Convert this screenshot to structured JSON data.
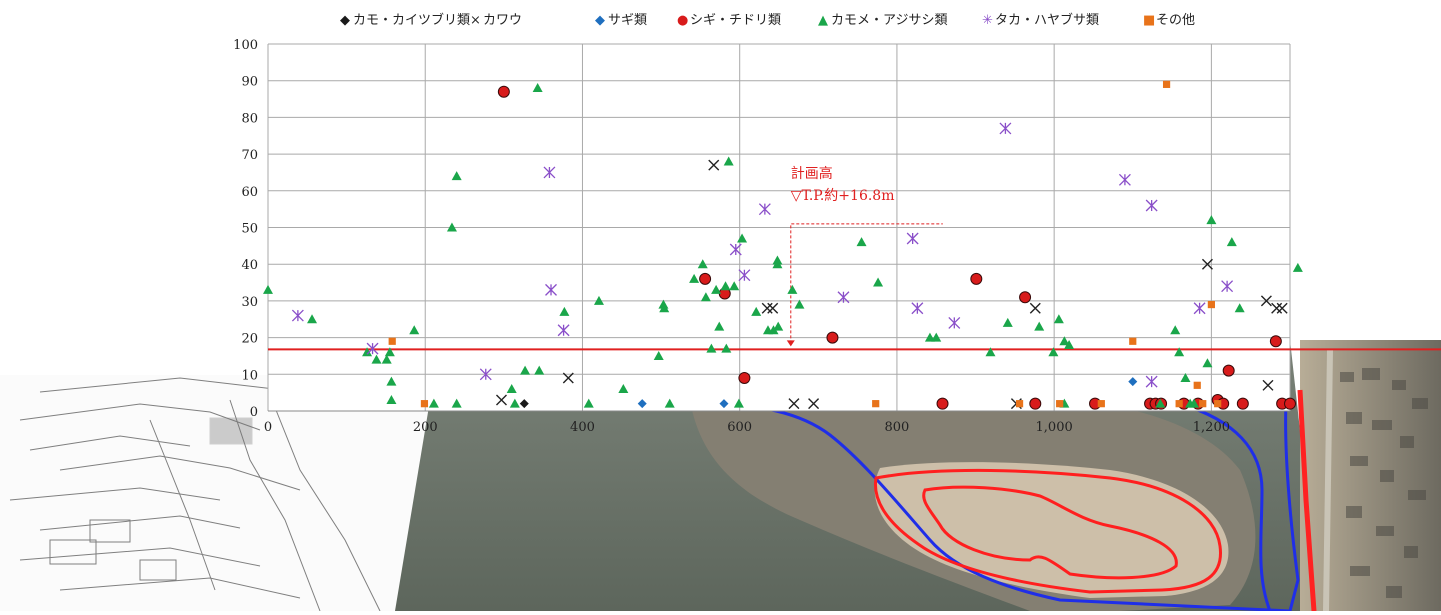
{
  "chart_data": {
    "type": "scatter",
    "title": "",
    "xlabel": "",
    "ylabel": "",
    "xlim": [
      0,
      1300
    ],
    "ylim": [
      0,
      100
    ],
    "grid": true,
    "legend_position": "top",
    "x_ticks": [
      {
        "value": 0,
        "label": "0"
      },
      {
        "value": 200,
        "label": "200"
      },
      {
        "value": 400,
        "label": "400"
      },
      {
        "value": 600,
        "label": "600"
      },
      {
        "value": 800,
        "label": "800"
      },
      {
        "value": 1000,
        "label": "1,000"
      },
      {
        "value": 1200,
        "label": "1,200"
      }
    ],
    "y_ticks": [
      {
        "value": 0,
        "label": "0"
      },
      {
        "value": 10,
        "label": "10"
      },
      {
        "value": 20,
        "label": "20"
      },
      {
        "value": 30,
        "label": "30"
      },
      {
        "value": 40,
        "label": "40"
      },
      {
        "value": 50,
        "label": "50"
      },
      {
        "value": 60,
        "label": "60"
      },
      {
        "value": 70,
        "label": "70"
      },
      {
        "value": 80,
        "label": "80"
      },
      {
        "value": 90,
        "label": "90"
      },
      {
        "value": 100,
        "label": "100"
      }
    ],
    "reference_line": {
      "value": 16.8,
      "color": "#e02020",
      "label_line1": "計画高",
      "label_line2": "▽T.P.約+16.8m",
      "label_x": 665
    },
    "series": [
      {
        "name": "カモ・カイツブリ類",
        "marker": "diamond",
        "color": "#1a1a1a",
        "legend_symbol": "◆",
        "points": [
          [
            326,
            2
          ]
        ]
      },
      {
        "name": "カワウ",
        "marker": "x",
        "color": "#222222",
        "legend_symbol": "×",
        "points": [
          [
            297,
            3
          ],
          [
            382,
            9
          ],
          [
            567,
            67
          ],
          [
            635,
            28
          ],
          [
            642,
            28
          ],
          [
            669,
            2
          ],
          [
            694,
            2
          ],
          [
            976,
            28
          ],
          [
            952,
            2
          ],
          [
            1195,
            40
          ],
          [
            1270,
            30
          ],
          [
            1283,
            28
          ],
          [
            1290,
            28
          ],
          [
            1272,
            7
          ]
        ]
      },
      {
        "name": "サギ類",
        "marker": "diamond",
        "color": "#1f6fbf",
        "legend_symbol": "◆",
        "points": [
          [
            476,
            2
          ],
          [
            580,
            2
          ],
          [
            1100,
            8
          ]
        ]
      },
      {
        "name": "シギ・チドリ類",
        "marker": "circle",
        "color": "#d81b1b",
        "legend_symbol": "●",
        "points": [
          [
            300,
            87
          ],
          [
            556,
            36
          ],
          [
            581,
            32
          ],
          [
            606,
            9
          ],
          [
            718,
            20
          ],
          [
            858,
            2
          ],
          [
            901,
            36
          ],
          [
            963,
            31
          ],
          [
            976,
            2
          ],
          [
            1052,
            2
          ],
          [
            1122,
            2
          ],
          [
            1129,
            2
          ],
          [
            1136,
            2
          ],
          [
            1165,
            2
          ],
          [
            1183,
            2
          ],
          [
            1208,
            3
          ],
          [
            1215,
            2
          ],
          [
            1222,
            11
          ],
          [
            1240,
            2
          ],
          [
            1282,
            19
          ],
          [
            1290,
            2
          ],
          [
            1300,
            2
          ]
        ]
      },
      {
        "name": "カモメ・アジサシ類",
        "marker": "triangle",
        "color": "#1aa64a",
        "legend_symbol": "▲",
        "points": [
          [
            0,
            33
          ],
          [
            56,
            25
          ],
          [
            126,
            16
          ],
          [
            138,
            14
          ],
          [
            151,
            14
          ],
          [
            155,
            16
          ],
          [
            157,
            8
          ],
          [
            157,
            3
          ],
          [
            186,
            22
          ],
          [
            211,
            2
          ],
          [
            234,
            50
          ],
          [
            240,
            64
          ],
          [
            240,
            2
          ],
          [
            310,
            6
          ],
          [
            314,
            2
          ],
          [
            327,
            11
          ],
          [
            345,
            11
          ],
          [
            343,
            88
          ],
          [
            377,
            27
          ],
          [
            408,
            2
          ],
          [
            421,
            30
          ],
          [
            452,
            6
          ],
          [
            497,
            15
          ],
          [
            503,
            29
          ],
          [
            504,
            28
          ],
          [
            511,
            2
          ],
          [
            542,
            36
          ],
          [
            553,
            40
          ],
          [
            557,
            31
          ],
          [
            564,
            17
          ],
          [
            570,
            33
          ],
          [
            574,
            23
          ],
          [
            582,
            34
          ],
          [
            583,
            17
          ],
          [
            586,
            68
          ],
          [
            593,
            34
          ],
          [
            599,
            2
          ],
          [
            603,
            47
          ],
          [
            621,
            27
          ],
          [
            636,
            22
          ],
          [
            643,
            22
          ],
          [
            649,
            23
          ],
          [
            648,
            40
          ],
          [
            648,
            41
          ],
          [
            667,
            33
          ],
          [
            676,
            29
          ],
          [
            755,
            46
          ],
          [
            776,
            35
          ],
          [
            842,
            20
          ],
          [
            850,
            20
          ],
          [
            919,
            16
          ],
          [
            941,
            24
          ],
          [
            981,
            23
          ],
          [
            999,
            16
          ],
          [
            1006,
            25
          ],
          [
            1013,
            19
          ],
          [
            1019,
            18
          ],
          [
            1013,
            2
          ],
          [
            1135,
            2
          ],
          [
            1154,
            22
          ],
          [
            1159,
            16
          ],
          [
            1167,
            9
          ],
          [
            1173,
            2
          ],
          [
            1178,
            2
          ],
          [
            1195,
            13
          ],
          [
            1200,
            52
          ],
          [
            1226,
            46
          ],
          [
            1236,
            28
          ],
          [
            1310,
            39
          ]
        ]
      },
      {
        "name": "タカ・ハヤブサ類",
        "marker": "asterisk",
        "color": "#8a4fc9",
        "legend_symbol": "✳",
        "points": [
          [
            38,
            26
          ],
          [
            133,
            17
          ],
          [
            277,
            10
          ],
          [
            358,
            65
          ],
          [
            360,
            33
          ],
          [
            376,
            22
          ],
          [
            595,
            44
          ],
          [
            606,
            37
          ],
          [
            632,
            55
          ],
          [
            732,
            31
          ],
          [
            820,
            47
          ],
          [
            826,
            28
          ],
          [
            873,
            24
          ],
          [
            938,
            77
          ],
          [
            1090,
            63
          ],
          [
            1124,
            56
          ],
          [
            1124,
            8
          ],
          [
            1185,
            28
          ],
          [
            1220,
            34
          ]
        ]
      },
      {
        "name": "その他",
        "marker": "square",
        "color": "#e8731a",
        "legend_symbol": "■",
        "points": [
          [
            158,
            19
          ],
          [
            199,
            2
          ],
          [
            773,
            2
          ],
          [
            956,
            2
          ],
          [
            1007,
            2
          ],
          [
            1060,
            2
          ],
          [
            1100,
            19
          ],
          [
            1143,
            89
          ],
          [
            1159,
            2
          ],
          [
            1182,
            7
          ],
          [
            1189,
            2
          ],
          [
            1200,
            29
          ],
          [
            1208,
            2
          ]
        ]
      }
    ]
  }
}
